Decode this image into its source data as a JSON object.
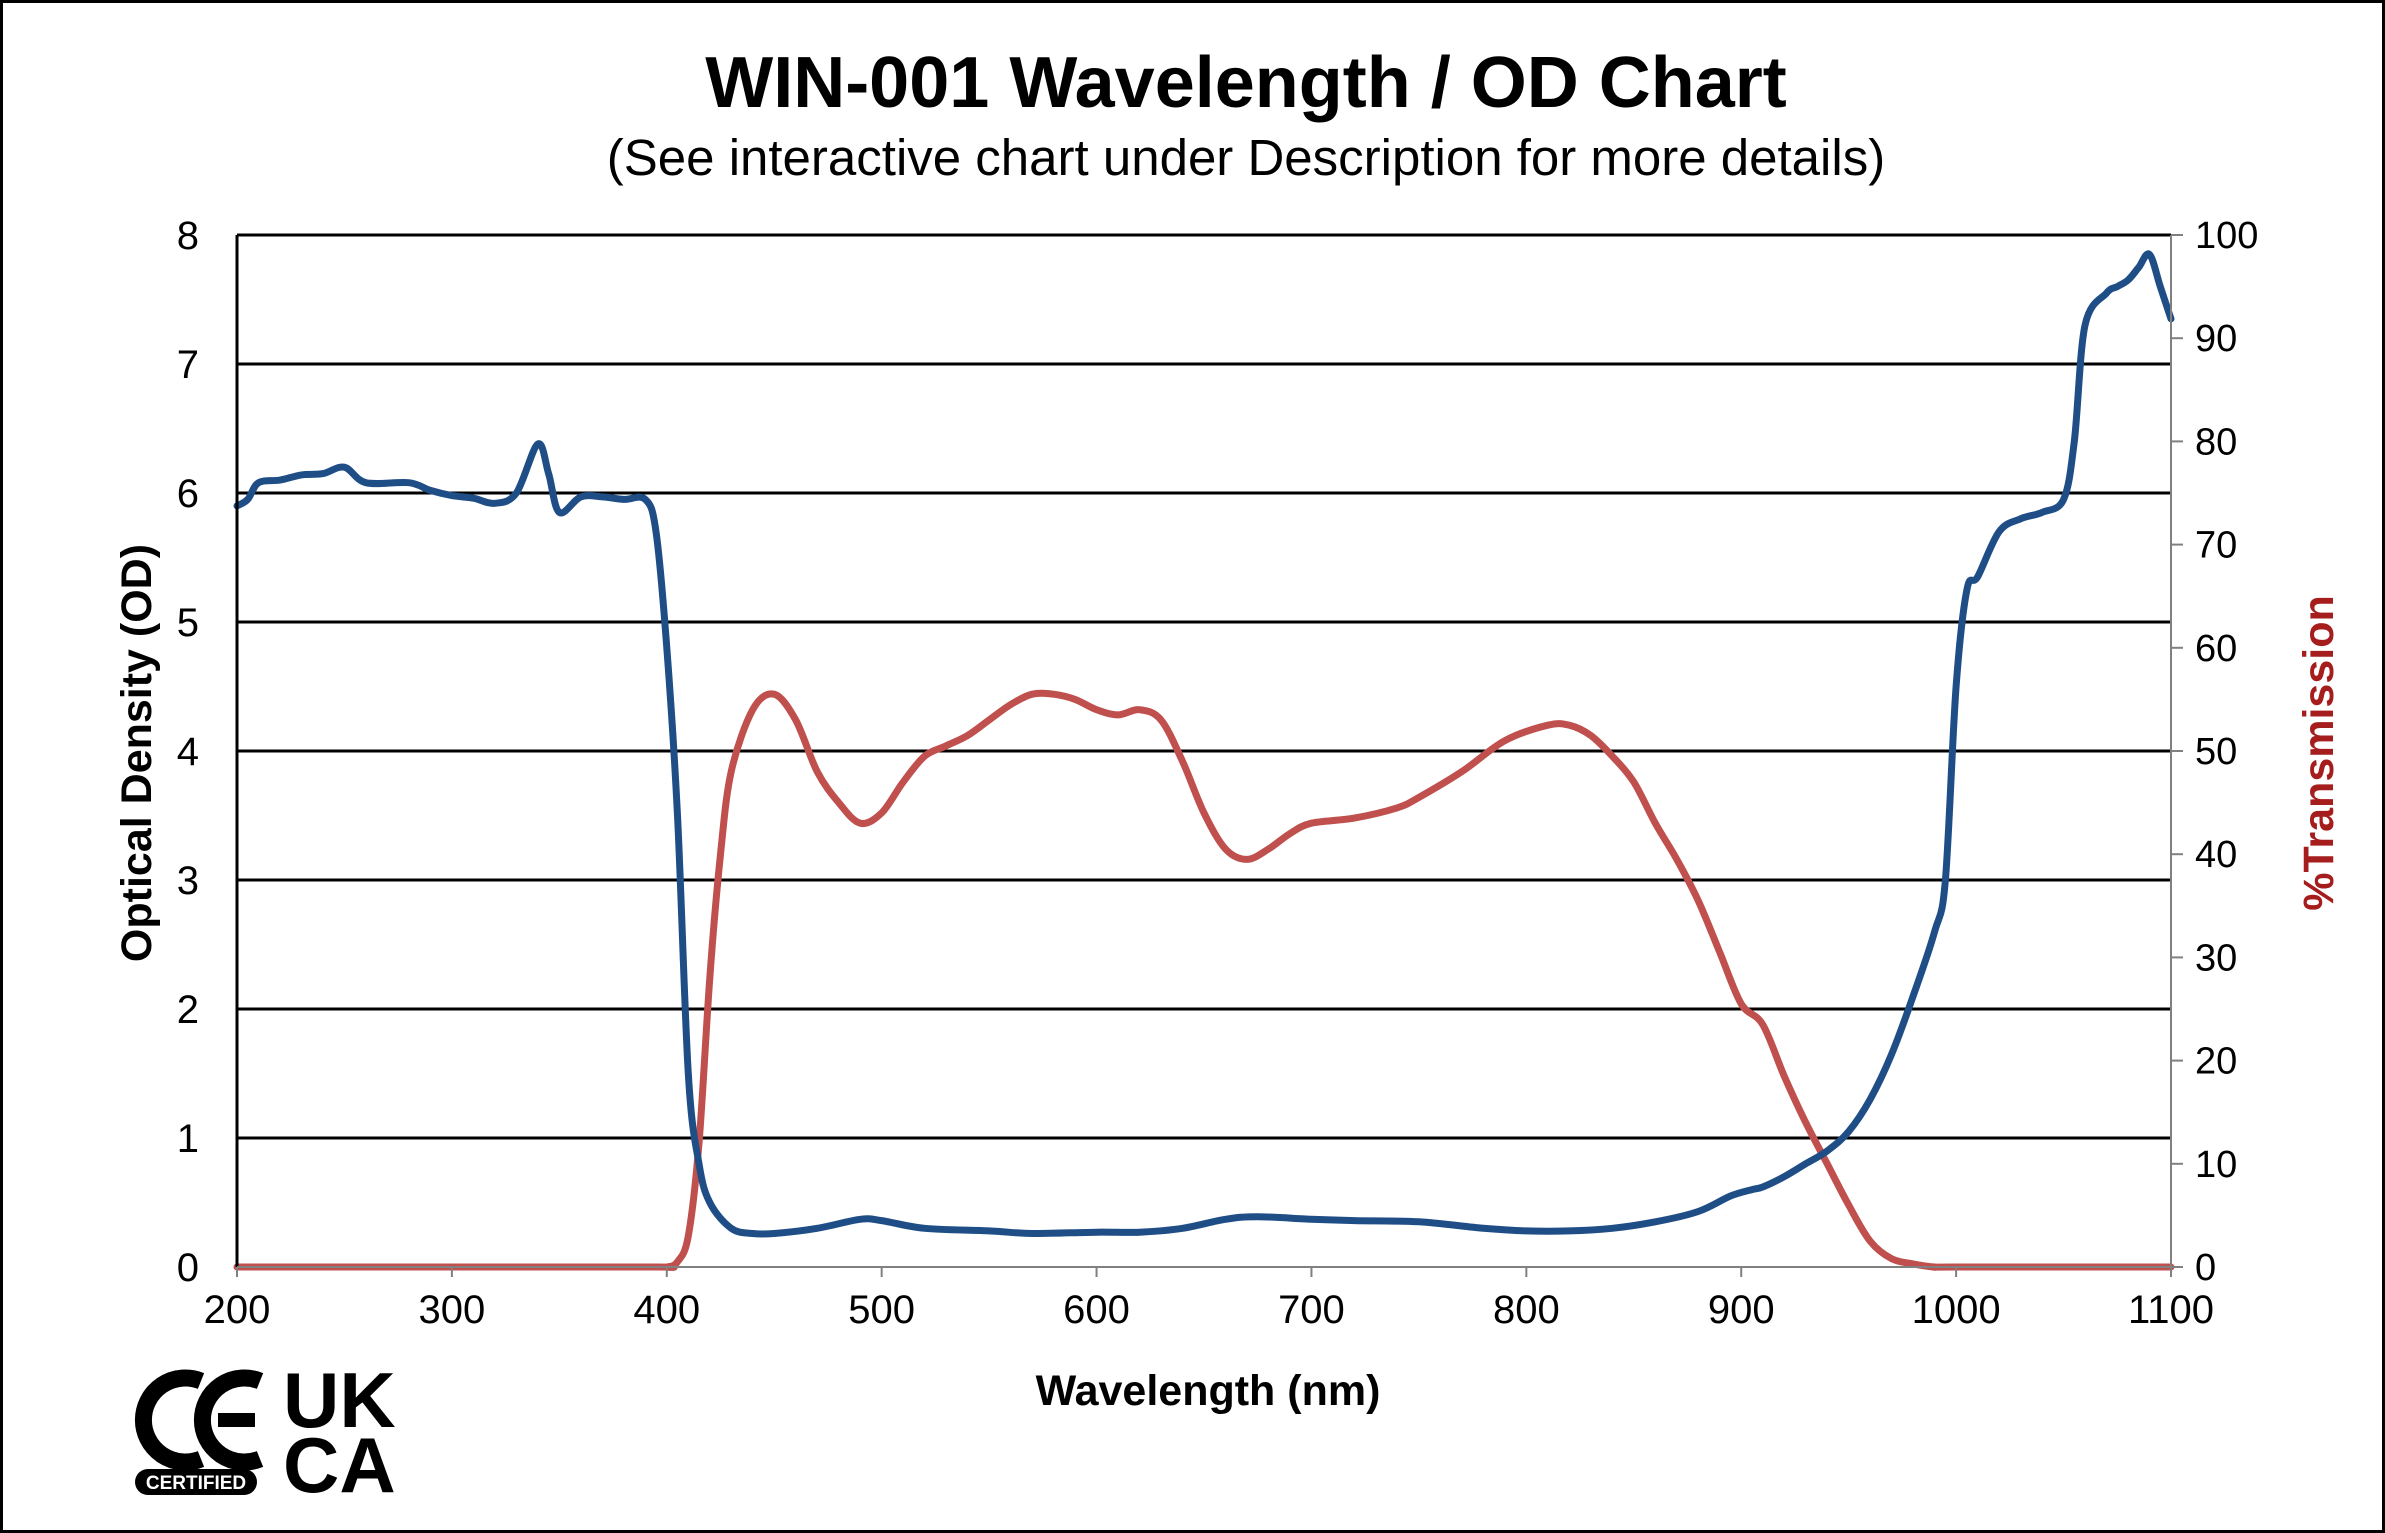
{
  "chart_data": {
    "type": "line",
    "title": "WIN-001 Wavelength / OD Chart",
    "subtitle": "(See interactive chart under Description for more details)",
    "xlabel": "Wavelength (nm)",
    "ylabel": "Optical Density (OD)",
    "y2label": "%Transmission",
    "xlim": [
      200,
      1100
    ],
    "ylim": [
      0,
      8
    ],
    "y2lim": [
      0,
      100
    ],
    "x_ticks": [
      200,
      300,
      400,
      500,
      600,
      700,
      800,
      900,
      1000,
      1100
    ],
    "y_ticks": [
      0,
      1,
      2,
      3,
      4,
      5,
      6,
      7,
      8
    ],
    "y2_ticks": [
      0,
      10,
      20,
      30,
      40,
      50,
      60,
      70,
      80,
      90,
      100
    ],
    "grid": "horizontal",
    "colors": {
      "od": "#1F4E87",
      "transmission": "#C0504D",
      "y2label": "#A51D1D",
      "grid": "#000000"
    },
    "series": [
      {
        "name": "Optical Density",
        "axis": "left",
        "points": [
          [
            200,
            5.9
          ],
          [
            205,
            5.95
          ],
          [
            210,
            6.08
          ],
          [
            220,
            6.1
          ],
          [
            230,
            6.14
          ],
          [
            240,
            6.15
          ],
          [
            250,
            6.2
          ],
          [
            260,
            6.08
          ],
          [
            280,
            6.08
          ],
          [
            290,
            6.02
          ],
          [
            300,
            5.98
          ],
          [
            310,
            5.96
          ],
          [
            320,
            5.92
          ],
          [
            330,
            6.0
          ],
          [
            340,
            6.38
          ],
          [
            345,
            6.15
          ],
          [
            350,
            5.85
          ],
          [
            360,
            5.97
          ],
          [
            370,
            5.97
          ],
          [
            380,
            5.95
          ],
          [
            390,
            5.95
          ],
          [
            395,
            5.7
          ],
          [
            400,
            4.8
          ],
          [
            405,
            3.5
          ],
          [
            410,
            1.5
          ],
          [
            415,
            0.8
          ],
          [
            420,
            0.5
          ],
          [
            430,
            0.3
          ],
          [
            440,
            0.26
          ],
          [
            450,
            0.26
          ],
          [
            470,
            0.3
          ],
          [
            490,
            0.37
          ],
          [
            500,
            0.36
          ],
          [
            520,
            0.3
          ],
          [
            550,
            0.28
          ],
          [
            570,
            0.26
          ],
          [
            600,
            0.27
          ],
          [
            620,
            0.27
          ],
          [
            640,
            0.3
          ],
          [
            660,
            0.37
          ],
          [
            675,
            0.39
          ],
          [
            700,
            0.37
          ],
          [
            720,
            0.36
          ],
          [
            750,
            0.35
          ],
          [
            780,
            0.3
          ],
          [
            800,
            0.28
          ],
          [
            820,
            0.28
          ],
          [
            840,
            0.3
          ],
          [
            860,
            0.35
          ],
          [
            880,
            0.43
          ],
          [
            895,
            0.55
          ],
          [
            905,
            0.6
          ],
          [
            910,
            0.62
          ],
          [
            920,
            0.7
          ],
          [
            930,
            0.8
          ],
          [
            940,
            0.9
          ],
          [
            950,
            1.05
          ],
          [
            960,
            1.3
          ],
          [
            970,
            1.65
          ],
          [
            980,
            2.1
          ],
          [
            990,
            2.6
          ],
          [
            995,
            3.0
          ],
          [
            1000,
            4.5
          ],
          [
            1005,
            5.25
          ],
          [
            1010,
            5.35
          ],
          [
            1020,
            5.7
          ],
          [
            1030,
            5.8
          ],
          [
            1040,
            5.85
          ],
          [
            1050,
            5.95
          ],
          [
            1055,
            6.4
          ],
          [
            1060,
            7.3
          ],
          [
            1070,
            7.55
          ],
          [
            1075,
            7.6
          ],
          [
            1080,
            7.65
          ],
          [
            1085,
            7.75
          ],
          [
            1090,
            7.85
          ],
          [
            1095,
            7.6
          ],
          [
            1100,
            7.35
          ]
        ]
      },
      {
        "name": "%Transmission",
        "axis": "right",
        "points": [
          [
            200,
            0
          ],
          [
            300,
            0
          ],
          [
            395,
            0
          ],
          [
            400,
            0
          ],
          [
            405,
            0.5
          ],
          [
            410,
            3
          ],
          [
            415,
            12
          ],
          [
            420,
            28
          ],
          [
            425,
            40
          ],
          [
            430,
            48
          ],
          [
            440,
            54
          ],
          [
            450,
            55.5
          ],
          [
            460,
            53
          ],
          [
            470,
            48
          ],
          [
            480,
            45
          ],
          [
            490,
            43
          ],
          [
            500,
            44
          ],
          [
            510,
            47
          ],
          [
            520,
            49.5
          ],
          [
            530,
            50.5
          ],
          [
            540,
            51.5
          ],
          [
            550,
            53
          ],
          [
            560,
            54.5
          ],
          [
            570,
            55.5
          ],
          [
            580,
            55.5
          ],
          [
            590,
            55
          ],
          [
            600,
            54
          ],
          [
            610,
            53.5
          ],
          [
            620,
            54
          ],
          [
            630,
            53
          ],
          [
            640,
            49
          ],
          [
            650,
            44
          ],
          [
            660,
            40.5
          ],
          [
            670,
            39.5
          ],
          [
            680,
            40.5
          ],
          [
            690,
            42
          ],
          [
            700,
            43
          ],
          [
            720,
            43.5
          ],
          [
            740,
            44.5
          ],
          [
            750,
            45.5
          ],
          [
            770,
            48
          ],
          [
            790,
            51
          ],
          [
            810,
            52.5
          ],
          [
            820,
            52.5
          ],
          [
            830,
            51.5
          ],
          [
            840,
            49.5
          ],
          [
            850,
            47
          ],
          [
            860,
            43
          ],
          [
            870,
            39.5
          ],
          [
            880,
            35.5
          ],
          [
            890,
            30.5
          ],
          [
            900,
            25.5
          ],
          [
            910,
            23.5
          ],
          [
            920,
            18.5
          ],
          [
            930,
            14
          ],
          [
            940,
            10
          ],
          [
            950,
            6
          ],
          [
            960,
            2.5
          ],
          [
            970,
            0.8
          ],
          [
            980,
            0.3
          ],
          [
            990,
            0
          ],
          [
            1000,
            0
          ],
          [
            1100,
            0
          ]
        ]
      }
    ]
  },
  "logos": {
    "ce_text": "CE",
    "certified_text": "CERTIFIED",
    "uk_text": "UK",
    "ca_text": "CA"
  }
}
